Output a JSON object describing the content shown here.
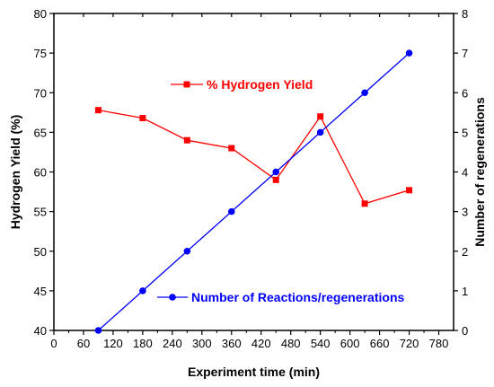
{
  "chart_data": {
    "type": "line",
    "xlabel": "Experiment time (min)",
    "ylabel": "Hydrogen Yield (%)",
    "y2label": "Number of regenerations",
    "xlim": [
      0,
      810
    ],
    "ylim": [
      40,
      80
    ],
    "y2lim": [
      0,
      8
    ],
    "xticks": [
      0,
      60,
      120,
      180,
      240,
      300,
      360,
      420,
      480,
      540,
      600,
      660,
      720,
      780
    ],
    "yticks": [
      40,
      45,
      50,
      55,
      60,
      65,
      70,
      75,
      80
    ],
    "y2ticks": [
      0,
      1,
      2,
      3,
      4,
      5,
      6,
      7,
      8
    ],
    "series": [
      {
        "name": "% Hydrogen Yield",
        "axis": "left",
        "color": "#ff0000",
        "marker": "square",
        "x": [
          90,
          180,
          270,
          360,
          450,
          540,
          630,
          720
        ],
        "y": [
          67.8,
          66.8,
          64.0,
          63.0,
          59.0,
          67.0,
          56.0,
          57.7
        ]
      },
      {
        "name": "Number of Reactions/regenerations",
        "axis": "right",
        "color": "#0000ff",
        "marker": "circle",
        "x": [
          90,
          180,
          270,
          360,
          450,
          540,
          630,
          720
        ],
        "y": [
          0,
          1,
          2,
          3,
          4,
          5,
          6,
          7
        ]
      }
    ],
    "legend": [
      "top-center",
      "bottom-right"
    ],
    "grid": false
  }
}
